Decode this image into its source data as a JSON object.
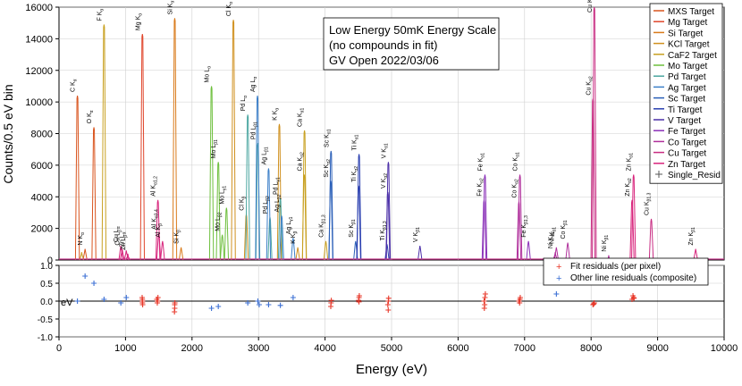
{
  "chart_data": [
    {
      "type": "line",
      "title": "",
      "annotation": [
        "Low Energy 50mK Energy Scale",
        "(no compounds in fit)",
        "GV Open 2022/03/06"
      ],
      "xlabel": "Energy (eV)",
      "ylabel": "Counts/0.5 eV bin",
      "xlim": [
        0,
        10000
      ],
      "ylim": [
        0,
        16000
      ],
      "x_ticks": [
        0,
        1000,
        2000,
        3000,
        4000,
        5000,
        6000,
        7000,
        8000,
        9000,
        10000
      ],
      "y_ticks": [
        0,
        2000,
        4000,
        6000,
        8000,
        10000,
        12000,
        14000,
        16000
      ],
      "legend_position": "top-right",
      "series": [
        {
          "name": "MXS Target",
          "color": "#d9541e",
          "peaks": [
            {
              "x": 277,
              "y": 10400,
              "label": "C K",
              "sub": "α"
            },
            {
              "x": 392,
              "y": 700,
              "label": "N K",
              "sub": "α"
            },
            {
              "x": 525,
              "y": 8400,
              "label": "O K",
              "sub": "α"
            }
          ]
        },
        {
          "name": "Mg Target",
          "color": "#e0462c",
          "peaks": [
            {
              "x": 1254,
              "y": 14300,
              "label": "Mg K",
              "sub": "α"
            }
          ]
        },
        {
          "name": "Si Target",
          "color": "#d97a1a",
          "peaks": [
            {
              "x": 1740,
              "y": 15300,
              "label": "Si K",
              "sub": "α"
            },
            {
              "x": 1836,
              "y": 800,
              "label": "Si K",
              "sub": "β"
            }
          ]
        },
        {
          "name": "KCl Target",
          "color": "#d0901e",
          "peaks": [
            {
              "x": 2622,
              "y": 15200,
              "label": "Cl K",
              "sub": "α"
            },
            {
              "x": 3313,
              "y": 8600,
              "label": "K K",
              "sub": "α"
            },
            {
              "x": 2816,
              "y": 2900,
              "label": "Cl K",
              "sub": "β"
            },
            {
              "x": 3590,
              "y": 800,
              "label": "K K",
              "sub": "β"
            }
          ]
        },
        {
          "name": "CaF2 Target",
          "color": "#c8a020",
          "peaks": [
            {
              "x": 677,
              "y": 14900,
              "label": "F K",
              "sub": "α"
            },
            {
              "x": 3691,
              "y": 8200,
              "label": "Ca K",
              "sub": "α1"
            },
            {
              "x": 3688,
              "y": 5400,
              "label": "Ca K",
              "sub": "α2"
            },
            {
              "x": 4012,
              "y": 1200,
              "label": "Ca K",
              "sub": "β1,3"
            },
            {
              "x": 341,
              "y": 500,
              "label": "",
              "sub": ""
            }
          ]
        },
        {
          "name": "Mo Target",
          "color": "#6dbf3c",
          "peaks": [
            {
              "x": 2293,
              "y": 11000,
              "label": "Mo L",
              "sub": "α"
            },
            {
              "x": 2395,
              "y": 6200,
              "label": "Mo L",
              "sub": "β1"
            },
            {
              "x": 2518,
              "y": 3300,
              "label": "Mo L",
              "sub": "γ1"
            },
            {
              "x": 2455,
              "y": 1600,
              "label": "Mo L",
              "sub": "β2"
            }
          ]
        },
        {
          "name": "Pd Target",
          "color": "#4aa6a0",
          "peaks": [
            {
              "x": 2838,
              "y": 9200,
              "label": "Pd L",
              "sub": "α"
            },
            {
              "x": 2990,
              "y": 7400,
              "label": "Pd L",
              "sub": "β1"
            },
            {
              "x": 3172,
              "y": 2700,
              "label": "Pd L",
              "sub": "β2"
            },
            {
              "x": 3328,
              "y": 3900,
              "label": "Pd L",
              "sub": "γ1"
            }
          ]
        },
        {
          "name": "Ag Target",
          "color": "#3c7fc8",
          "peaks": [
            {
              "x": 2984,
              "y": 10400,
              "label": "Ag L",
              "sub": "α"
            },
            {
              "x": 3151,
              "y": 5800,
              "label": "Ag L",
              "sub": "β1"
            },
            {
              "x": 3348,
              "y": 2800,
              "label": "Ag L",
              "sub": "β2"
            },
            {
              "x": 3520,
              "y": 1400,
              "label": "Ag L",
              "sub": "γ1"
            }
          ]
        },
        {
          "name": "Sc Target",
          "color": "#2a5fb8",
          "peaks": [
            {
              "x": 4090,
              "y": 6900,
              "label": "Sc K",
              "sub": "α1"
            },
            {
              "x": 4086,
              "y": 5000,
              "label": "Sc K",
              "sub": "α2"
            },
            {
              "x": 4460,
              "y": 1200,
              "label": "Sc K",
              "sub": "β1"
            }
          ]
        },
        {
          "name": "Ti Target",
          "color": "#2a3fb0",
          "peaks": [
            {
              "x": 4511,
              "y": 6700,
              "label": "Ti K",
              "sub": "α1"
            },
            {
              "x": 4505,
              "y": 4700,
              "label": "Ti K",
              "sub": "α2"
            },
            {
              "x": 4932,
              "y": 1000,
              "label": "Ti K",
              "sub": "β1,3"
            }
          ]
        },
        {
          "name": "V Target",
          "color": "#4b2fa8",
          "peaks": [
            {
              "x": 4952,
              "y": 6200,
              "label": "V K",
              "sub": "α1"
            },
            {
              "x": 4944,
              "y": 4300,
              "label": "V K",
              "sub": "α2"
            },
            {
              "x": 5427,
              "y": 900,
              "label": "V K",
              "sub": "β1"
            }
          ]
        },
        {
          "name": "Fe Target",
          "color": "#8a30b8",
          "peaks": [
            {
              "x": 6404,
              "y": 5400,
              "label": "Fe K",
              "sub": "α1"
            },
            {
              "x": 6391,
              "y": 3800,
              "label": "Fe K",
              "sub": "α2"
            },
            {
              "x": 7058,
              "y": 1200,
              "label": "Fe K",
              "sub": "β1,3"
            }
          ]
        },
        {
          "name": "Co Target",
          "color": "#b0309c",
          "peaks": [
            {
              "x": 6930,
              "y": 5400,
              "label": "Co K",
              "sub": "α1"
            },
            {
              "x": 6915,
              "y": 3700,
              "label": "Co K",
              "sub": "α2"
            },
            {
              "x": 7649,
              "y": 1100,
              "label": "Co K",
              "sub": "β1"
            },
            {
              "x": 7478,
              "y": 800,
              "label": "Ni K",
              "sub": "α1"
            },
            {
              "x": 7461,
              "y": 500,
              "label": "Ni K",
              "sub": "α2"
            },
            {
              "x": 8265,
              "y": 300,
              "label": "Ni K",
              "sub": "β1"
            }
          ]
        },
        {
          "name": "Cu Target",
          "color": "#c82c82",
          "peaks": [
            {
              "x": 8048,
              "y": 16000,
              "label": "Cu K",
              "sub": "α1"
            },
            {
              "x": 8028,
              "y": 10200,
              "label": "Cu K",
              "sub": "α2"
            },
            {
              "x": 8905,
              "y": 2600,
              "label": "Cu K",
              "sub": "β1,3"
            }
          ]
        },
        {
          "name": "Zn Target",
          "color": "#d8247c",
          "peaks": [
            {
              "x": 8639,
              "y": 5400,
              "label": "Zn K",
              "sub": "α1"
            },
            {
              "x": 8616,
              "y": 3800,
              "label": "Zn K",
              "sub": "α2"
            },
            {
              "x": 9572,
              "y": 700,
              "label": "Zn K",
              "sub": "β1"
            },
            {
              "x": 1012,
              "y": 600,
              "label": "Zn L",
              "sub": "α"
            },
            {
              "x": 1035,
              "y": 400,
              "label": "Zn L",
              "sub": "β"
            },
            {
              "x": 930,
              "y": 900,
              "label": "Cu L",
              "sub": "α"
            },
            {
              "x": 950,
              "y": 700,
              "label": "Cu L",
              "sub": "β"
            },
            {
              "x": 1487,
              "y": 3800,
              "label": "Al K",
              "sub": "α1,2"
            },
            {
              "x": 1557,
              "y": 1200,
              "label": "Al K",
              "sub": "β"
            },
            {
              "x": 1500,
              "y": 1700,
              "label": "Al K",
              "sub": "α3,4"
            }
          ]
        },
        {
          "name": "Single_Resid",
          "color": "#555555",
          "marker": "+",
          "peaks": []
        }
      ]
    },
    {
      "type": "scatter",
      "xlabel": "Energy (eV)",
      "ylabel": "eV",
      "xlim": [
        0,
        10000
      ],
      "ylim": [
        -1.0,
        1.0
      ],
      "x_ticks": [
        0,
        1000,
        2000,
        3000,
        4000,
        5000,
        6000,
        7000,
        8000,
        9000,
        10000
      ],
      "y_ticks": [
        1.0,
        0.5,
        0.0,
        -0.5,
        -1.0
      ],
      "legend_position": "top-right",
      "series": [
        {
          "name": "Fit residuals (per pixel)",
          "color": "#e8392b",
          "marker": "+",
          "points": [
            [
              1254,
              0.05
            ],
            [
              1254,
              -0.05
            ],
            [
              1250,
              0.1
            ],
            [
              1258,
              -0.1
            ],
            [
              1256,
              0.0
            ],
            [
              1470,
              0.05
            ],
            [
              1482,
              0.0
            ],
            [
              1488,
              0.1
            ],
            [
              1478,
              -0.05
            ],
            [
              1740,
              -0.1
            ],
            [
              1740,
              -0.2
            ],
            [
              1736,
              -0.3
            ],
            [
              1742,
              -0.05
            ],
            [
              4090,
              -0.05
            ],
            [
              4086,
              -0.15
            ],
            [
              4094,
              0.02
            ],
            [
              4511,
              0.1
            ],
            [
              4505,
              0.02
            ],
            [
              4515,
              0.15
            ],
            [
              4510,
              -0.02
            ],
            [
              4952,
              0.0
            ],
            [
              4944,
              -0.1
            ],
            [
              4950,
              -0.25
            ],
            [
              4956,
              0.08
            ],
            [
              6404,
              0.1
            ],
            [
              6391,
              0.0
            ],
            [
              6400,
              -0.1
            ],
            [
              6410,
              0.2
            ],
            [
              6395,
              -0.2
            ],
            [
              6930,
              0.05
            ],
            [
              6915,
              0.0
            ],
            [
              6925,
              -0.05
            ],
            [
              6935,
              0.1
            ],
            [
              8048,
              -0.05
            ],
            [
              8028,
              -0.1
            ],
            [
              8040,
              -0.08
            ],
            [
              8639,
              0.1
            ],
            [
              8616,
              0.05
            ],
            [
              8630,
              0.15
            ],
            [
              8645,
              0.08
            ]
          ]
        },
        {
          "name": "Other line residuals (composite)",
          "color": "#3b6fd4",
          "marker": "+",
          "points": [
            [
              277,
              0.0
            ],
            [
              392,
              0.7
            ],
            [
              525,
              0.5
            ],
            [
              677,
              0.05
            ],
            [
              930,
              -0.05
            ],
            [
              1012,
              0.1
            ],
            [
              2293,
              -0.2
            ],
            [
              2395,
              -0.15
            ],
            [
              2838,
              -0.05
            ],
            [
              2990,
              0.0
            ],
            [
              3010,
              -0.1
            ],
            [
              3151,
              -0.1
            ],
            [
              3328,
              -0.12
            ],
            [
              3520,
              0.1
            ],
            [
              7478,
              0.2
            ]
          ]
        }
      ]
    }
  ]
}
